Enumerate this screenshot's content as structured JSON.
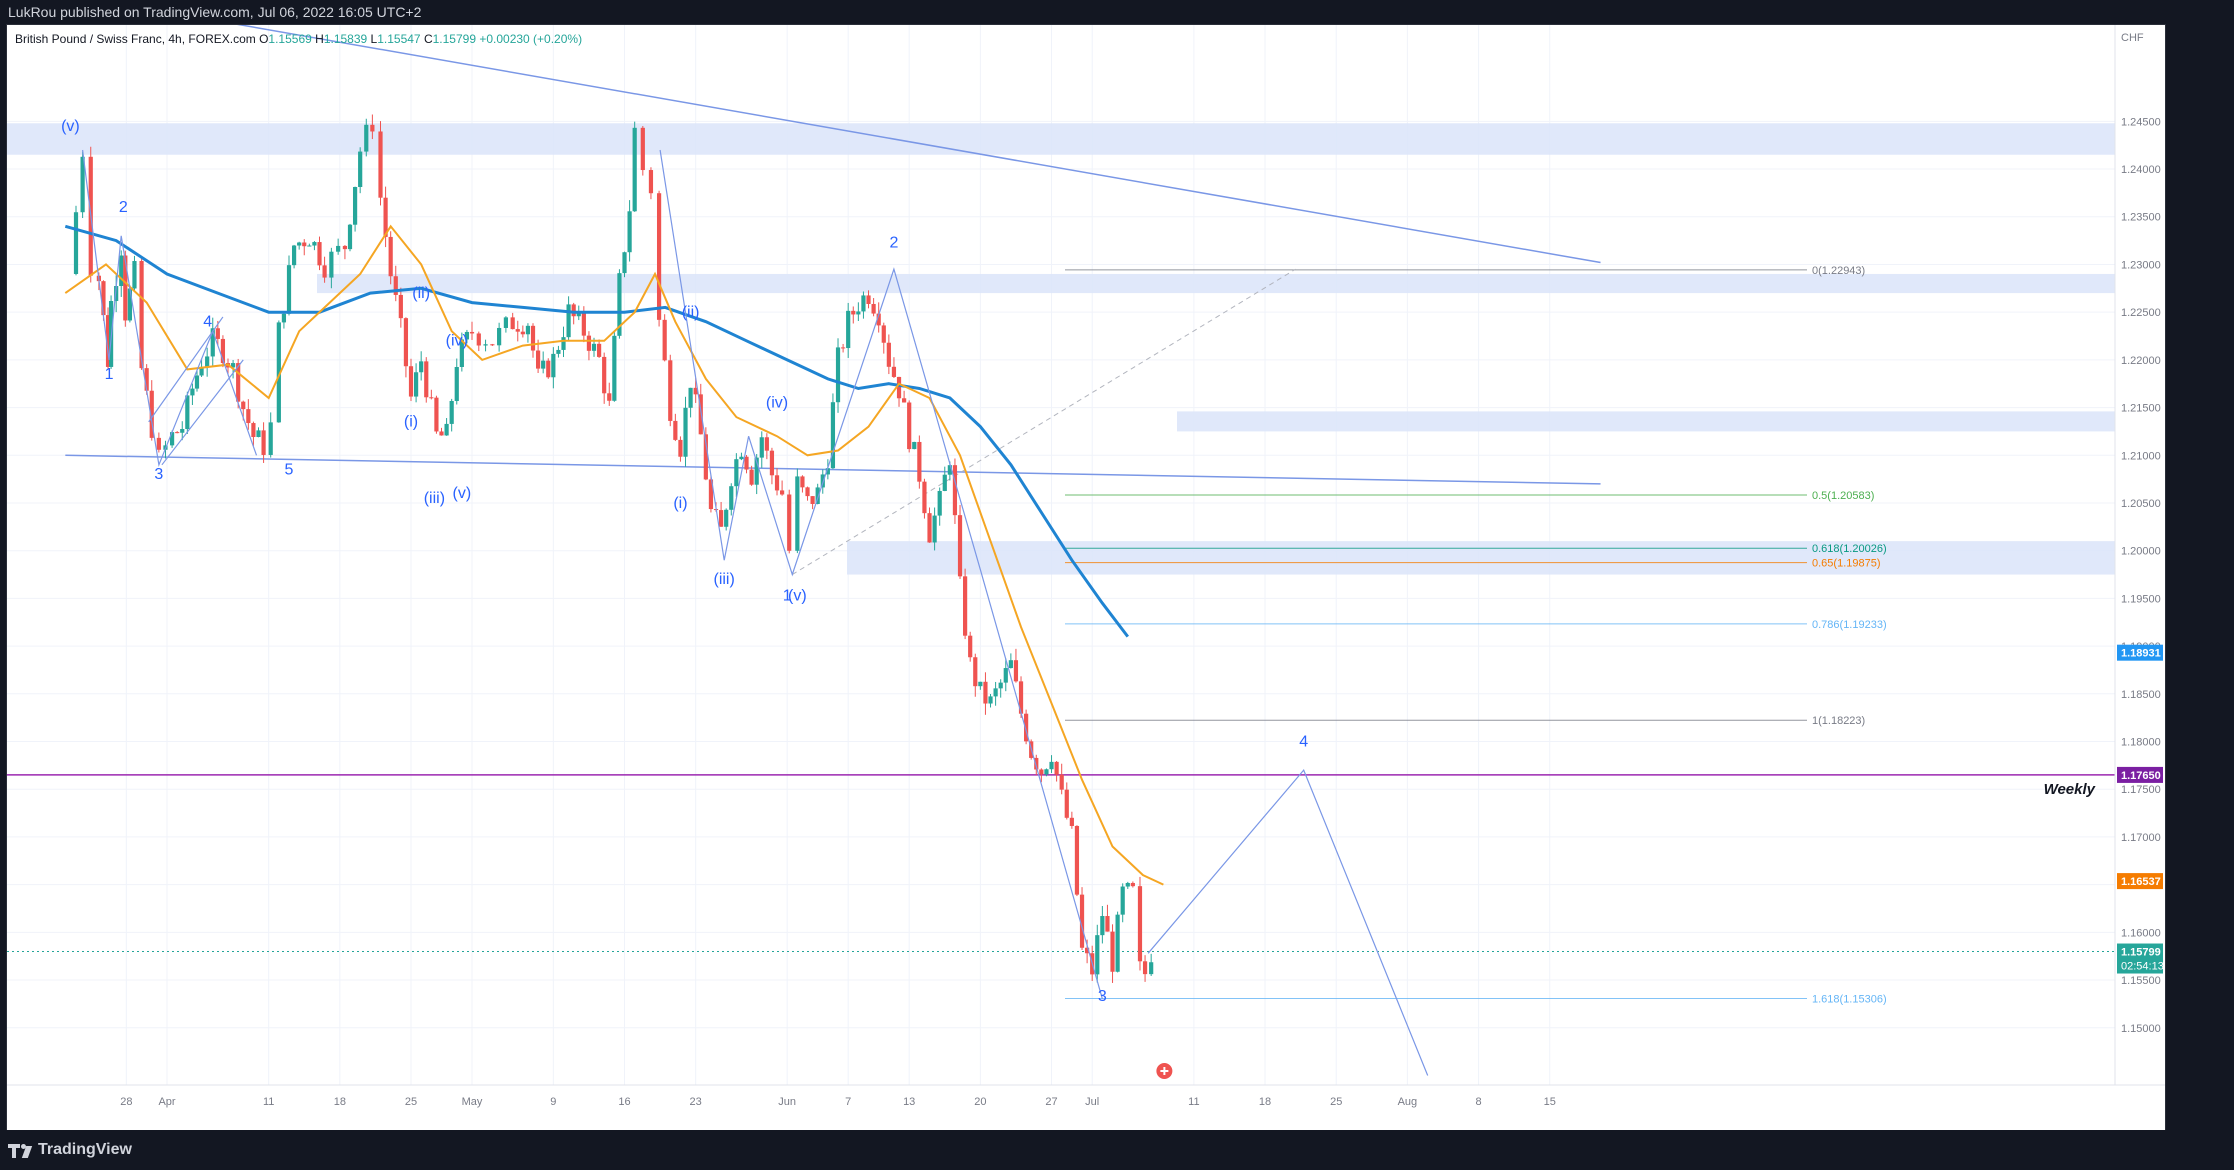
{
  "header": {
    "published_by": "LukRou published on TradingView.com, Jul 06, 2022 16:05 UTC+2"
  },
  "footer": {
    "brand": "TradingView"
  },
  "chart_data": {
    "type": "candlestick",
    "symbol_line": {
      "name": "British Pound / Swiss Franc, 4h, FOREX.com",
      "o_label": "O",
      "o_value": "1.15569",
      "h_label": "H",
      "h_value": "1.15839",
      "l_label": "L",
      "l_value": "1.15547",
      "c_label": "C",
      "c_value": "1.15799",
      "change": "+0.00230 (+0.20%)"
    },
    "currency": "CHF",
    "ylim": [
      1.144,
      1.253
    ],
    "y_ticks": [
      "1.24500",
      "1.24000",
      "1.23500",
      "1.23000",
      "1.22500",
      "1.22000",
      "1.21500",
      "1.21000",
      "1.20500",
      "1.20000",
      "1.19500",
      "1.19000",
      "1.18500",
      "1.18000",
      "1.17500",
      "1.17000",
      "1.16500",
      "1.16000",
      "1.15500",
      "1.15000"
    ],
    "x_labels": [
      {
        "label": "28",
        "day": -4
      },
      {
        "label": "Apr",
        "day": 0
      },
      {
        "label": "11",
        "day": 10
      },
      {
        "label": "18",
        "day": 17
      },
      {
        "label": "25",
        "day": 24
      },
      {
        "label": "May",
        "day": 30
      },
      {
        "label": "9",
        "day": 38
      },
      {
        "label": "16",
        "day": 45
      },
      {
        "label": "23",
        "day": 52
      },
      {
        "label": "Jun",
        "day": 61
      },
      {
        "label": "7",
        "day": 67
      },
      {
        "label": "13",
        "day": 73
      },
      {
        "label": "20",
        "day": 80
      },
      {
        "label": "27",
        "day": 87
      },
      {
        "label": "Jul",
        "day": 91
      },
      {
        "label": "11",
        "day": 101
      },
      {
        "label": "18",
        "day": 108
      },
      {
        "label": "25",
        "day": 115
      },
      {
        "label": "Aug",
        "day": 122
      },
      {
        "label": "8",
        "day": 129
      },
      {
        "label": "15",
        "day": 136
      }
    ],
    "price_path": [
      [
        -9.6,
        1.229
      ],
      [
        -8.3,
        1.242
      ],
      [
        -7.5,
        1.23
      ],
      [
        -6.7,
        1.2285
      ],
      [
        -5.8,
        1.22
      ],
      [
        -5.5,
        1.226
      ],
      [
        -4.5,
        1.232
      ],
      [
        -4.1,
        1.225
      ],
      [
        -3.2,
        1.229
      ],
      [
        -2.5,
        1.219
      ],
      [
        -1.5,
        1.213
      ],
      [
        -0.8,
        1.2095
      ],
      [
        0.5,
        1.212
      ],
      [
        1.5,
        1.213
      ],
      [
        2.5,
        1.217
      ],
      [
        3.4,
        1.22
      ],
      [
        4.5,
        1.222
      ],
      [
        5.5,
        1.221
      ],
      [
        6.5,
        1.219
      ],
      [
        7.5,
        1.215
      ],
      [
        8.5,
        1.212
      ],
      [
        9.5,
        1.211
      ],
      [
        10.2,
        1.213
      ],
      [
        11.0,
        1.223
      ],
      [
        12.5,
        1.232
      ],
      [
        14.0,
        1.233
      ],
      [
        15.5,
        1.23
      ],
      [
        17.5,
        1.232
      ],
      [
        19.0,
        1.242
      ],
      [
        20.2,
        1.245
      ],
      [
        21.0,
        1.237
      ],
      [
        22.0,
        1.229
      ],
      [
        23.0,
        1.223
      ],
      [
        24.0,
        1.216
      ],
      [
        25.0,
        1.22
      ],
      [
        26.5,
        1.212
      ],
      [
        27.5,
        1.212
      ],
      [
        28.5,
        1.22
      ],
      [
        30.0,
        1.223
      ],
      [
        32.0,
        1.222
      ],
      [
        34.0,
        1.224
      ],
      [
        35.5,
        1.224
      ],
      [
        36.5,
        1.218
      ],
      [
        38.0,
        1.22
      ],
      [
        39.5,
        1.225
      ],
      [
        41.0,
        1.223
      ],
      [
        42.5,
        1.22
      ],
      [
        43.5,
        1.215
      ],
      [
        44.5,
        1.228
      ],
      [
        45.5,
        1.236
      ],
      [
        46.0,
        1.244
      ],
      [
        46.8,
        1.24
      ],
      [
        47.6,
        1.238
      ],
      [
        48.4,
        1.224
      ],
      [
        49.5,
        1.215
      ],
      [
        50.5,
        1.211
      ],
      [
        51.5,
        1.218
      ],
      [
        52.5,
        1.212
      ],
      [
        53.5,
        1.204
      ],
      [
        54.5,
        1.202
      ],
      [
        55.5,
        1.208
      ],
      [
        56.5,
        1.211
      ],
      [
        57.5,
        1.208
      ],
      [
        58.5,
        1.212
      ],
      [
        59.5,
        1.208
      ],
      [
        60.5,
        1.206
      ],
      [
        61.2,
        1.2
      ],
      [
        62.0,
        1.207
      ],
      [
        63.0,
        1.205
      ],
      [
        64.0,
        1.206
      ],
      [
        65.0,
        1.21
      ],
      [
        66.0,
        1.22
      ],
      [
        67.0,
        1.224
      ],
      [
        68.0,
        1.226
      ],
      [
        69.0,
        1.227
      ],
      [
        70.0,
        1.225
      ],
      [
        71.0,
        1.22
      ],
      [
        72.0,
        1.217
      ],
      [
        73.0,
        1.212
      ],
      [
        74.0,
        1.208
      ],
      [
        75.0,
        1.202
      ],
      [
        76.0,
        1.205
      ],
      [
        77.0,
        1.21
      ],
      [
        78.0,
        1.196
      ],
      [
        79.0,
        1.188
      ],
      [
        80.0,
        1.185
      ],
      [
        81.0,
        1.184
      ],
      [
        82.0,
        1.186
      ],
      [
        83.0,
        1.188
      ],
      [
        84.0,
        1.183
      ],
      [
        85.0,
        1.179
      ],
      [
        86.0,
        1.177
      ],
      [
        87.0,
        1.179
      ],
      [
        88.0,
        1.174
      ],
      [
        89.0,
        1.17
      ],
      [
        90.0,
        1.158
      ],
      [
        91.0,
        1.156
      ],
      [
        92.0,
        1.162
      ],
      [
        93.0,
        1.157
      ],
      [
        94.0,
        1.164
      ],
      [
        95.0,
        1.164
      ],
      [
        95.7,
        1.156
      ],
      [
        96.2,
        1.1557
      ],
      [
        96.8,
        1.158
      ]
    ],
    "ma_200": {
      "color": "#1f84d2",
      "points": [
        [
          -10,
          1.234
        ],
        [
          -5,
          1.2325
        ],
        [
          0,
          1.229
        ],
        [
          5,
          1.227
        ],
        [
          10,
          1.225
        ],
        [
          15,
          1.225
        ],
        [
          20,
          1.227
        ],
        [
          25,
          1.2275
        ],
        [
          30,
          1.226
        ],
        [
          35,
          1.2255
        ],
        [
          40,
          1.225
        ],
        [
          45,
          1.225
        ],
        [
          49,
          1.2255
        ],
        [
          53,
          1.224
        ],
        [
          57,
          1.222
        ],
        [
          61,
          1.22
        ],
        [
          65,
          1.218
        ],
        [
          68,
          1.217
        ],
        [
          71,
          1.2175
        ],
        [
          74,
          1.217
        ],
        [
          77,
          1.216
        ],
        [
          80,
          1.213
        ],
        [
          83,
          1.209
        ],
        [
          86,
          1.204
        ],
        [
          89,
          1.199
        ],
        [
          92,
          1.1945
        ],
        [
          94.5,
          1.191
        ]
      ]
    },
    "ma_50": {
      "color": "#f5a623",
      "points": [
        [
          -10,
          1.227
        ],
        [
          -6,
          1.23
        ],
        [
          -2,
          1.226
        ],
        [
          2,
          1.219
        ],
        [
          6,
          1.2195
        ],
        [
          10,
          1.216
        ],
        [
          13,
          1.223
        ],
        [
          16,
          1.226
        ],
        [
          19,
          1.229
        ],
        [
          22,
          1.234
        ],
        [
          25,
          1.23
        ],
        [
          28,
          1.223
        ],
        [
          31,
          1.22
        ],
        [
          35,
          1.2215
        ],
        [
          39,
          1.222
        ],
        [
          43,
          1.222
        ],
        [
          46,
          1.225
        ],
        [
          48,
          1.229
        ],
        [
          50,
          1.224
        ],
        [
          53,
          1.218
        ],
        [
          56,
          1.214
        ],
        [
          60,
          1.212
        ],
        [
          63,
          1.21
        ],
        [
          66,
          1.2105
        ],
        [
          69,
          1.213
        ],
        [
          72,
          1.2175
        ],
        [
          75,
          1.216
        ],
        [
          78,
          1.21
        ],
        [
          81,
          1.201
        ],
        [
          84,
          1.192
        ],
        [
          87,
          1.184
        ],
        [
          90,
          1.176
        ],
        [
          93,
          1.169
        ],
        [
          96,
          1.166
        ],
        [
          98,
          1.165
        ]
      ]
    },
    "zones": [
      {
        "from": 1.2415,
        "to": 1.2448
      },
      {
        "from": 1.227,
        "to": 1.229
      },
      {
        "from": 1.2125,
        "to": 1.2146
      },
      {
        "from": 1.1975,
        "to": 1.201
      }
    ],
    "upper_trendline": {
      "x1": 16.5,
      "y1": 1.2525,
      "x2": 141,
      "y2": 1.2302
    },
    "lower_trendline": {
      "x1": -10,
      "y1": 1.21,
      "x2": 141,
      "y2": 1.207
    },
    "fib": {
      "levels": [
        {
          "label": "0(1.22943)",
          "price": 1.22943,
          "color": "#787b86"
        },
        {
          "label": "0.5(1.20583)",
          "price": 1.20583,
          "color": "#4caf50"
        },
        {
          "label": "0.618(1.20026)",
          "price": 1.20026,
          "color": "#089981"
        },
        {
          "label": "0.65(1.19875)",
          "price": 1.19875,
          "color": "#f57c00"
        },
        {
          "label": "0.786(1.19233)",
          "price": 1.19233,
          "color": "#64b5f6"
        },
        {
          "label": "1(1.18223)",
          "price": 1.18223,
          "color": "#787b86"
        },
        {
          "label": "1.618(1.15306)",
          "price": 1.15306,
          "color": "#64b5f6"
        }
      ]
    },
    "weekly_level": {
      "price": 1.1765,
      "label": "Weekly",
      "color": "#9c27b0"
    },
    "wave_labels": [
      {
        "text": "(v)",
        "day": -9.5,
        "price": 1.244
      },
      {
        "text": "2",
        "day": -4.3,
        "price": 1.2355
      },
      {
        "text": "1",
        "day": -5.7,
        "price": 1.218
      },
      {
        "text": "4",
        "day": 4.0,
        "price": 1.2235
      },
      {
        "text": "3",
        "day": -0.8,
        "price": 1.2075
      },
      {
        "text": "5",
        "day": 12.0,
        "price": 1.208
      },
      {
        "text": "(ii)",
        "day": 25.0,
        "price": 1.2265
      },
      {
        "text": "(iv)",
        "day": 28.5,
        "price": 1.2215
      },
      {
        "text": "(i)",
        "day": 24.0,
        "price": 1.213
      },
      {
        "text": "(iii)",
        "day": 26.3,
        "price": 1.205
      },
      {
        "text": "(v)",
        "day": 29.0,
        "price": 1.2055
      },
      {
        "text": "(ii)",
        "day": 51.5,
        "price": 1.2245
      },
      {
        "text": "(iv)",
        "day": 60.0,
        "price": 1.215
      },
      {
        "text": "(i)",
        "day": 50.5,
        "price": 1.2045
      },
      {
        "text": "(iii)",
        "day": 54.8,
        "price": 1.1965
      },
      {
        "text": "1",
        "day": 61.0,
        "price": 1.1948
      },
      {
        "text": "(v)",
        "day": 62.0,
        "price": 1.1948
      },
      {
        "text": "2",
        "day": 71.5,
        "price": 1.2318
      },
      {
        "text": "3",
        "day": 92.0,
        "price": 1.1528
      },
      {
        "text": "4",
        "day": 111.8,
        "price": 1.1795
      }
    ],
    "wave_path_1": [
      [
        -8.3,
        1.242
      ],
      [
        -5.7,
        1.22
      ],
      [
        -4.5,
        1.233
      ],
      [
        -0.8,
        1.209
      ],
      [
        4.5,
        1.223
      ],
      [
        8.8,
        1.21
      ]
    ],
    "projection": [
      [
        96.5,
        1.1578
      ],
      [
        111.8,
        1.177
      ],
      [
        124,
        1.145
      ]
    ],
    "fib_diag": [
      [
        61.5,
        1.1975
      ],
      [
        111,
        1.2295
      ]
    ],
    "down_path": [
      [
        48.5,
        1.242
      ],
      [
        54.8,
        1.199
      ],
      [
        57.2,
        1.212
      ],
      [
        61.5,
        1.1975
      ],
      [
        71.5,
        1.2295
      ],
      [
        80,
        1.198
      ],
      [
        92,
        1.153
      ]
    ],
    "price_axis_labels": [
      {
        "price": 1.18931,
        "text": "1.18931",
        "bg": "#2196f3"
      },
      {
        "price": 1.1765,
        "text": "1.17650",
        "bg": "#7b1fa2"
      },
      {
        "price": 1.16537,
        "text": "1.16537",
        "bg": "#f57c00"
      },
      {
        "price": 1.15799,
        "text": "1.15799",
        "bg": "#26a69a",
        "extra": "02:54:13"
      }
    ],
    "current_price": 1.15799,
    "colors": {
      "up": "#26a69a",
      "down": "#ef5350",
      "zone": "#dbe4f9",
      "trendline": "#7a97e6",
      "label": "#2962ff",
      "grid": "#f0f3fa"
    }
  }
}
